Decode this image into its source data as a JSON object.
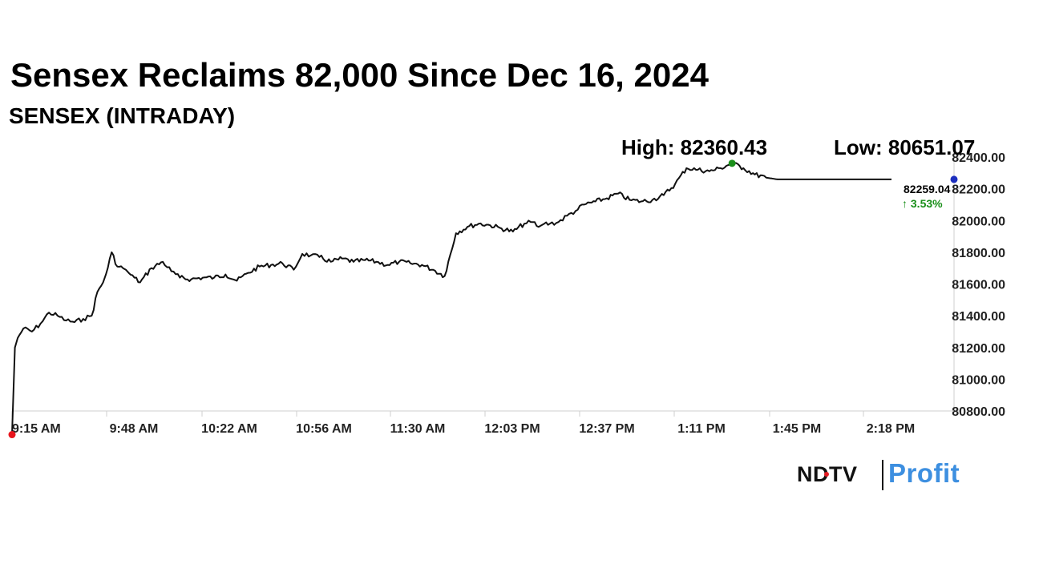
{
  "header": {
    "title": "Sensex Reclaims 82,000 Since Dec 16, 2024",
    "subtitle": "SENSEX (INTRADAY)"
  },
  "chart_data": {
    "type": "line",
    "title": "Sensex Reclaims 82,000 Since Dec 16, 2024",
    "subtitle": "SENSEX (INTRADAY)",
    "xlabel": "",
    "ylabel": "",
    "x_ticks": [
      "9:15 AM",
      "9:48 AM",
      "10:22 AM",
      "10:56 AM",
      "11:30 AM",
      "12:03 PM",
      "12:37 PM",
      "1:11 PM",
      "1:45 PM",
      "2:18 PM"
    ],
    "y_ticks": [
      "80800.00",
      "81000.00",
      "81200.00",
      "81400.00",
      "81600.00",
      "81800.00",
      "82000.00",
      "82200.00",
      "82400.00"
    ],
    "ylim": [
      80800,
      82400
    ],
    "grid": false,
    "series": [
      {
        "x": [
          "9:15",
          "9:16",
          "9:17",
          "9:19",
          "9:22",
          "9:25",
          "9:28",
          "9:31",
          "9:34",
          "9:37",
          "9:40",
          "9:43",
          "9:45",
          "9:47",
          "9:48",
          "9:50",
          "9:52",
          "9:54",
          "9:55",
          "9:56",
          "9:58",
          "10:00",
          "10:04",
          "10:08",
          "10:11",
          "10:14",
          "10:18",
          "10:22",
          "10:26",
          "10:30",
          "10:34",
          "10:38",
          "10:42",
          "10:46",
          "10:50",
          "10:54",
          "10:57",
          "11:00",
          "11:03",
          "11:07",
          "11:11",
          "11:15",
          "11:19",
          "11:23",
          "11:27",
          "11:31",
          "11:35",
          "11:39",
          "11:43",
          "11:47",
          "11:51",
          "11:55",
          "11:59",
          "12:03",
          "12:07",
          "12:11",
          "12:15",
          "12:18",
          "12:20",
          "12:21",
          "12:22",
          "12:24",
          "12:27",
          "12:30",
          "12:33",
          "12:36",
          "12:40",
          "12:44",
          "12:48",
          "12:52",
          "12:56",
          "13:00",
          "13:04",
          "13:08",
          "13:12",
          "13:16",
          "13:20",
          "13:24",
          "13:28",
          "13:32",
          "13:36",
          "13:40",
          "13:44",
          "13:48",
          "13:52",
          "13:54",
          "13:56",
          "13:58",
          "14:02",
          "14:06",
          "14:10",
          "14:12",
          "14:14",
          "14:16",
          "14:18",
          "14:20",
          "14:22",
          "14:24"
        ],
        "values": [
          80651.07,
          81200,
          81260,
          81320,
          81300,
          81350,
          81420,
          81400,
          81370,
          81360,
          81380,
          81400,
          81550,
          81610,
          81660,
          81800,
          81710,
          81700,
          81690,
          81670,
          81640,
          81610,
          81700,
          81740,
          81680,
          81640,
          81630,
          81640,
          81640,
          81660,
          81620,
          81670,
          81710,
          81720,
          81730,
          81690,
          81790,
          81780,
          81770,
          81740,
          81760,
          81740,
          81750,
          81740,
          81720,
          81740,
          81730,
          81720,
          81690,
          81650,
          81920,
          81960,
          81980,
          81970,
          81950,
          81930,
          81980,
          81990,
          81960,
          81970,
          81980,
          81980,
          81990,
          82030,
          82060,
          82100,
          82120,
          82140,
          82170,
          82130,
          82120,
          82130,
          82160,
          82230,
          82330,
          82320,
          82310,
          82330,
          82360.43,
          82330,
          82290,
          82270,
          82259.04,
          82259.04,
          82259.04,
          82259.04,
          82259.04,
          82259.04,
          82259.04,
          82259.04,
          82259.04,
          82259.04,
          82259.04,
          82259.04,
          82259.04,
          82259.04,
          82259.04,
          82259.04
        ],
        "color": "#111111"
      }
    ],
    "annotations": {
      "high_label": "High: 82360.43",
      "low_label": "Low: 80651.07",
      "last_value": "82259.04",
      "change_label": "↑ 3.53%",
      "high_marker_color": "#1a8f1a",
      "low_marker_color": "#e8161d",
      "last_marker_color": "#1d2fbf",
      "change_color": "#1a8f1a"
    }
  },
  "logo": {
    "brand": "NDTV",
    "separator": "|",
    "product": "Profit"
  }
}
